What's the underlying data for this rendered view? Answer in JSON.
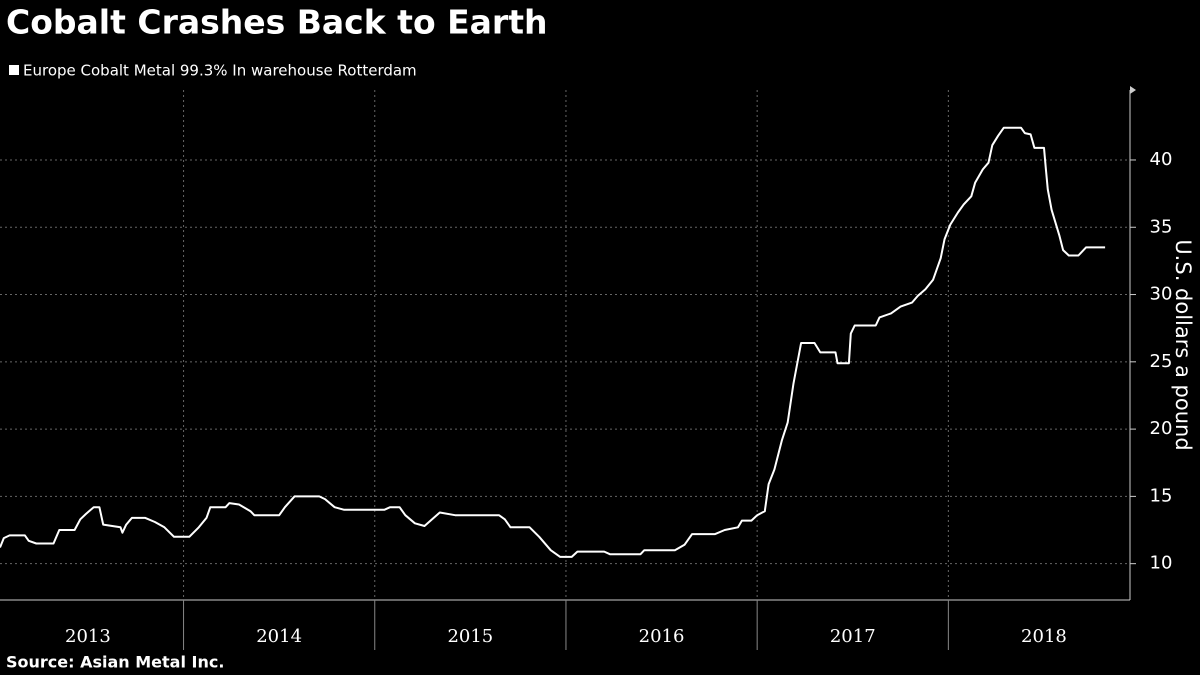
{
  "chart_data": {
    "type": "line",
    "title": "Cobalt Crashes Back to Earth",
    "y_label": "U.S. dollars a pound",
    "source": "Source: Asian Metal Inc.",
    "x": [
      2013.04,
      2013.06,
      2013.09,
      2013.17,
      2013.19,
      2013.23,
      2013.32,
      2013.35,
      2013.43,
      2013.46,
      2013.49,
      2013.53,
      2013.56,
      2013.58,
      2013.67,
      2013.68,
      2013.7,
      2013.73,
      2013.8,
      2013.85,
      2013.9,
      2013.95,
      2014.03,
      2014.08,
      2014.12,
      2014.14,
      2014.22,
      2014.24,
      2014.29,
      2014.35,
      2014.37,
      2014.5,
      2014.53,
      2014.58,
      2014.71,
      2014.74,
      2014.79,
      2014.84,
      2015.05,
      2015.08,
      2015.13,
      2015.16,
      2015.21,
      2015.26,
      2015.3,
      2015.34,
      2015.42,
      2015.65,
      2015.68,
      2015.71,
      2015.81,
      2015.86,
      2015.92,
      2015.97,
      2016.03,
      2016.06,
      2016.2,
      2016.23,
      2016.39,
      2016.41,
      2016.57,
      2016.62,
      2016.66,
      2016.78,
      2016.83,
      2016.9,
      2016.92,
      2016.97,
      2017.0,
      2017.04,
      2017.06,
      2017.09,
      2017.13,
      2017.16,
      2017.19,
      2017.23,
      2017.3,
      2017.33,
      2017.41,
      2017.42,
      2017.48,
      2017.49,
      2017.51,
      2017.62,
      2017.64,
      2017.7,
      2017.75,
      2017.81,
      2017.84,
      2017.88,
      2017.92,
      2017.96,
      2017.98,
      2018.01,
      2018.05,
      2018.08,
      2018.12,
      2018.14,
      2018.18,
      2018.21,
      2018.23,
      2018.26,
      2018.29,
      2018.38,
      2018.4,
      2018.43,
      2018.45,
      2018.5,
      2018.51,
      2018.52,
      2018.54,
      2018.58,
      2018.6,
      2018.63,
      2018.68,
      2018.72,
      2018.82
    ],
    "series": [
      {
        "name": "Europe Cobalt Metal 99.3% In warehouse Rotterdam",
        "color": "#ffffff",
        "values": [
          11.2,
          11.9,
          12.1,
          12.1,
          11.7,
          11.5,
          11.5,
          12.5,
          12.5,
          13.3,
          13.7,
          14.2,
          14.2,
          12.9,
          12.7,
          12.3,
          12.9,
          13.4,
          13.4,
          13.1,
          12.7,
          12.0,
          12.0,
          12.7,
          13.4,
          14.2,
          14.2,
          14.5,
          14.4,
          13.9,
          13.6,
          13.6,
          14.2,
          15.0,
          15.0,
          14.8,
          14.2,
          14.0,
          14.0,
          14.2,
          14.2,
          13.6,
          13.0,
          12.8,
          13.3,
          13.8,
          13.6,
          13.6,
          13.3,
          12.7,
          12.7,
          12.0,
          11.0,
          10.5,
          10.5,
          10.9,
          10.9,
          10.7,
          10.7,
          11.0,
          11.0,
          11.4,
          12.2,
          12.2,
          12.5,
          12.7,
          13.2,
          13.2,
          13.6,
          13.9,
          15.9,
          17.0,
          19.2,
          20.5,
          23.4,
          26.4,
          26.4,
          25.7,
          25.7,
          24.9,
          24.9,
          27.1,
          27.7,
          27.7,
          28.3,
          28.6,
          29.1,
          29.4,
          29.9,
          30.4,
          31.1,
          32.7,
          34.1,
          35.2,
          36.1,
          36.7,
          37.3,
          38.3,
          39.3,
          39.8,
          41.1,
          41.8,
          42.4,
          42.4,
          42.0,
          41.9,
          40.9,
          40.9,
          39.3,
          37.8,
          36.3,
          34.4,
          33.3,
          32.9,
          32.9,
          33.5,
          33.5
        ]
      }
    ],
    "xlim": [
      2013.04,
      2018.95
    ],
    "xticks": [
      {
        "value": 2013.5,
        "label": "2013"
      },
      {
        "value": 2014.5,
        "label": "2014"
      },
      {
        "value": 2015.5,
        "label": "2015"
      },
      {
        "value": 2016.5,
        "label": "2016"
      },
      {
        "value": 2017.5,
        "label": "2017"
      },
      {
        "value": 2018.5,
        "label": "2018"
      }
    ],
    "ylim": [
      7.3,
      45.2
    ],
    "yticks": [
      10,
      15,
      20,
      25,
      30,
      35,
      40
    ],
    "grid": true
  }
}
